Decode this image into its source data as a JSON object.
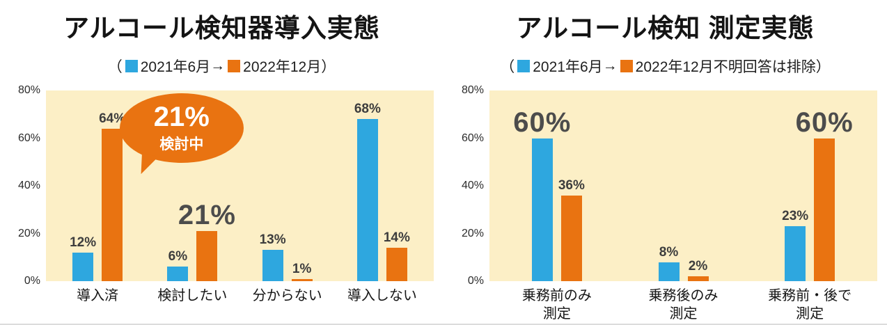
{
  "page": {
    "background": "#ffffff"
  },
  "colors": {
    "blue": "#2EA7DF",
    "orange": "#E97311",
    "plot_bg": "#FCEFC6",
    "label_text": "#3D3D3D"
  },
  "chart_data": [
    {
      "type": "bar",
      "title": "アルコール検知器導入実態",
      "legend": {
        "prefix": "（",
        "arrow": "→",
        "suffix": "）"
      },
      "categories": [
        "導入済",
        "検討したい",
        "分からない",
        "導入しない"
      ],
      "series": [
        {
          "name": "2021年6月",
          "color": "#2EA7DF",
          "values": [
            12,
            6,
            13,
            68
          ],
          "labels": [
            "12%",
            "6%",
            "13%",
            "68%"
          ],
          "big": [
            false,
            false,
            false,
            false
          ]
        },
        {
          "name": "2022年12月",
          "color": "#E97311",
          "values": [
            64,
            21,
            1,
            14
          ],
          "labels": [
            "64%",
            "21%",
            "1%",
            "14%"
          ],
          "big": [
            false,
            true,
            false,
            false
          ]
        }
      ],
      "ylim": [
        0,
        80
      ],
      "yticks": [
        "80%",
        "60%",
        "40%",
        "20%",
        "0%"
      ],
      "grid": false,
      "legend_position": "top",
      "callout": {
        "value": "21%",
        "label": "検討中"
      }
    },
    {
      "type": "bar",
      "title": "アルコール検知 測定実態",
      "legend": {
        "prefix": "（",
        "arrow": "→",
        "suffix": " 不明回答は排除）"
      },
      "categories": [
        "乗務前のみ\n測定",
        "乗務後のみ\n測定",
        "乗務前・後で\n測定"
      ],
      "series": [
        {
          "name": "2021年6月",
          "color": "#2EA7DF",
          "values": [
            60,
            8,
            23
          ],
          "labels": [
            "60%",
            "8%",
            "23%"
          ],
          "big": [
            true,
            false,
            false
          ]
        },
        {
          "name": "2022年12月",
          "color": "#E97311",
          "values": [
            36,
            2,
            60
          ],
          "labels": [
            "36%",
            "2%",
            "60%"
          ],
          "big": [
            false,
            false,
            true
          ]
        }
      ],
      "ylim": [
        0,
        80
      ],
      "yticks": [
        "80%",
        "60%",
        "40%",
        "20%",
        "0%"
      ],
      "grid": false,
      "legend_position": "top"
    }
  ]
}
